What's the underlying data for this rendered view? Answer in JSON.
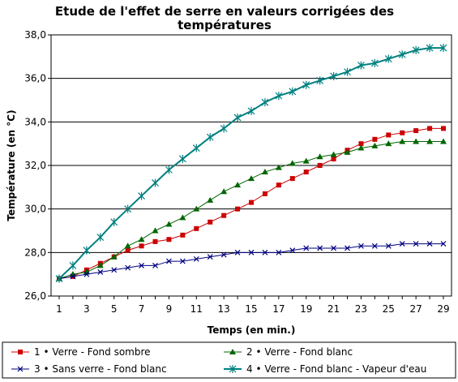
{
  "chart_data": {
    "type": "line",
    "title": "Etude de l'effet de serre en valeurs corrigées des températures",
    "title_lines": [
      "Etude de l'effet de serre en valeurs corrigées des",
      "températures"
    ],
    "xlabel": "Temps (en min.)",
    "ylabel": "Température (en °C)",
    "xlim": [
      1,
      29
    ],
    "ylim": [
      26,
      38
    ],
    "y_ticks": [
      "26,0",
      "28,0",
      "30,0",
      "32,0",
      "34,0",
      "36,0",
      "38,0"
    ],
    "y_tick_values": [
      26,
      28,
      30,
      32,
      34,
      36,
      38
    ],
    "x_ticks": [
      "1",
      "3",
      "5",
      "7",
      "9",
      "11",
      "13",
      "15",
      "17",
      "19",
      "21",
      "23",
      "25",
      "27",
      "29"
    ],
    "x_tick_values": [
      1,
      3,
      5,
      7,
      9,
      11,
      13,
      15,
      17,
      19,
      21,
      23,
      25,
      27,
      29
    ],
    "grid": "horizontal",
    "legend_position": "bottom",
    "x": [
      1,
      2,
      3,
      4,
      5,
      6,
      7,
      8,
      9,
      10,
      11,
      12,
      13,
      14,
      15,
      16,
      17,
      18,
      19,
      20,
      21,
      22,
      23,
      24,
      25,
      26,
      27,
      28,
      29
    ],
    "series": [
      {
        "name": "1 • Verre - Fond sombre",
        "color": "#cc0000",
        "marker": "square",
        "values": [
          26.8,
          26.9,
          27.2,
          27.5,
          27.8,
          28.1,
          28.3,
          28.5,
          28.6,
          28.8,
          29.1,
          29.4,
          29.7,
          30.0,
          30.3,
          30.7,
          31.1,
          31.4,
          31.7,
          32.0,
          32.3,
          32.7,
          33.0,
          33.2,
          33.4,
          33.5,
          33.6,
          33.7,
          33.7
        ]
      },
      {
        "name": "2 • Verre - Fond blanc",
        "color": "#006600",
        "marker": "triangle",
        "values": [
          26.8,
          27.0,
          27.1,
          27.4,
          27.8,
          28.3,
          28.6,
          29.0,
          29.3,
          29.6,
          30.0,
          30.4,
          30.8,
          31.1,
          31.4,
          31.7,
          31.9,
          32.1,
          32.2,
          32.4,
          32.5,
          32.6,
          32.8,
          32.9,
          33.0,
          33.1,
          33.1,
          33.1,
          33.1
        ]
      },
      {
        "name": "3 • Sans verre - Fond blanc",
        "color": "#000080",
        "marker": "x",
        "values": [
          26.8,
          26.9,
          27.0,
          27.1,
          27.2,
          27.3,
          27.4,
          27.4,
          27.6,
          27.6,
          27.7,
          27.8,
          27.9,
          28.0,
          28.0,
          28.0,
          28.0,
          28.1,
          28.2,
          28.2,
          28.2,
          28.2,
          28.3,
          28.3,
          28.3,
          28.4,
          28.4,
          28.4,
          28.4
        ]
      },
      {
        "name": "4 • Verre - Fond blanc - Vapeur d'eau",
        "color": "#008080",
        "marker": "star",
        "values": [
          26.8,
          27.4,
          28.1,
          28.7,
          29.4,
          30.0,
          30.6,
          31.2,
          31.8,
          32.3,
          32.8,
          33.3,
          33.7,
          34.2,
          34.5,
          34.9,
          35.2,
          35.4,
          35.7,
          35.9,
          36.1,
          36.3,
          36.6,
          36.7,
          36.9,
          37.1,
          37.3,
          37.4,
          37.4
        ]
      }
    ]
  }
}
